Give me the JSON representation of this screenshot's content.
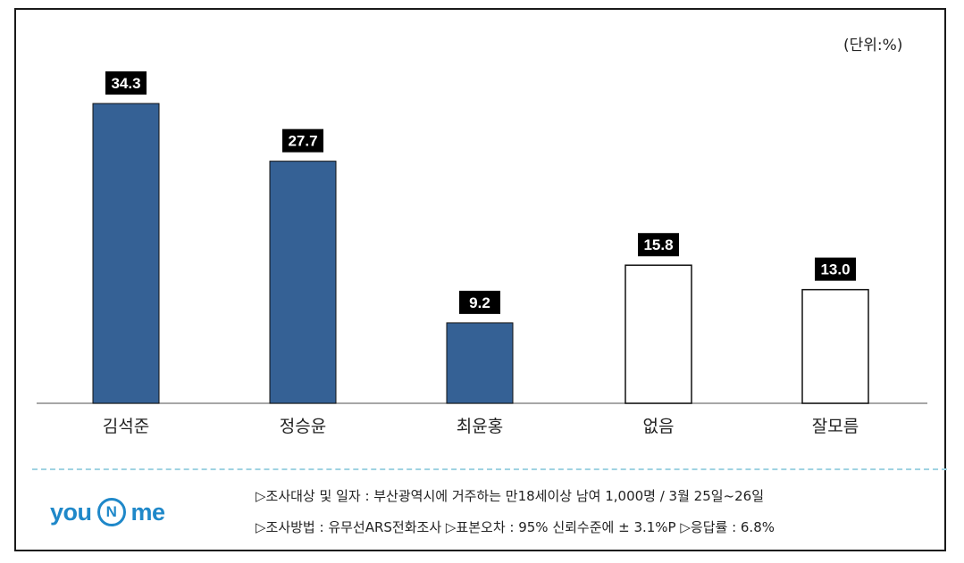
{
  "unit_label": "(단위:%)",
  "chart_data": {
    "type": "bar",
    "categories": [
      "김석준",
      "정승윤",
      "최윤홍",
      "없음",
      "잘모름"
    ],
    "values": [
      34.3,
      27.7,
      9.2,
      15.8,
      13.0
    ],
    "value_labels": [
      "34.3",
      "27.7",
      "9.2",
      "15.8",
      "13.0"
    ],
    "bar_styles": [
      "filled",
      "filled",
      "filled",
      "outline",
      "outline"
    ],
    "title": "",
    "xlabel": "",
    "ylabel": "",
    "ylim": [
      0,
      34.3
    ],
    "grid": false,
    "legend": "none"
  },
  "colors": {
    "filled_bar": "#356195",
    "outline_bar": "#ffffff",
    "label_bg": "#000000",
    "label_text": "#ffffff"
  },
  "footer": {
    "logo": {
      "left": "you",
      "middle": "N",
      "right": "me"
    },
    "note_line_1": "▷조사대상 및 일자 : 부산광역시에 거주하는 만18세이상 남여 1,000명  /  3월 25일~26일",
    "note_line_2": "▷조사방법 : 유무선ARS전화조사     ▷표본오차 : 95% 신뢰수준에 ± 3.1%P     ▷응답률 : 6.8%"
  }
}
